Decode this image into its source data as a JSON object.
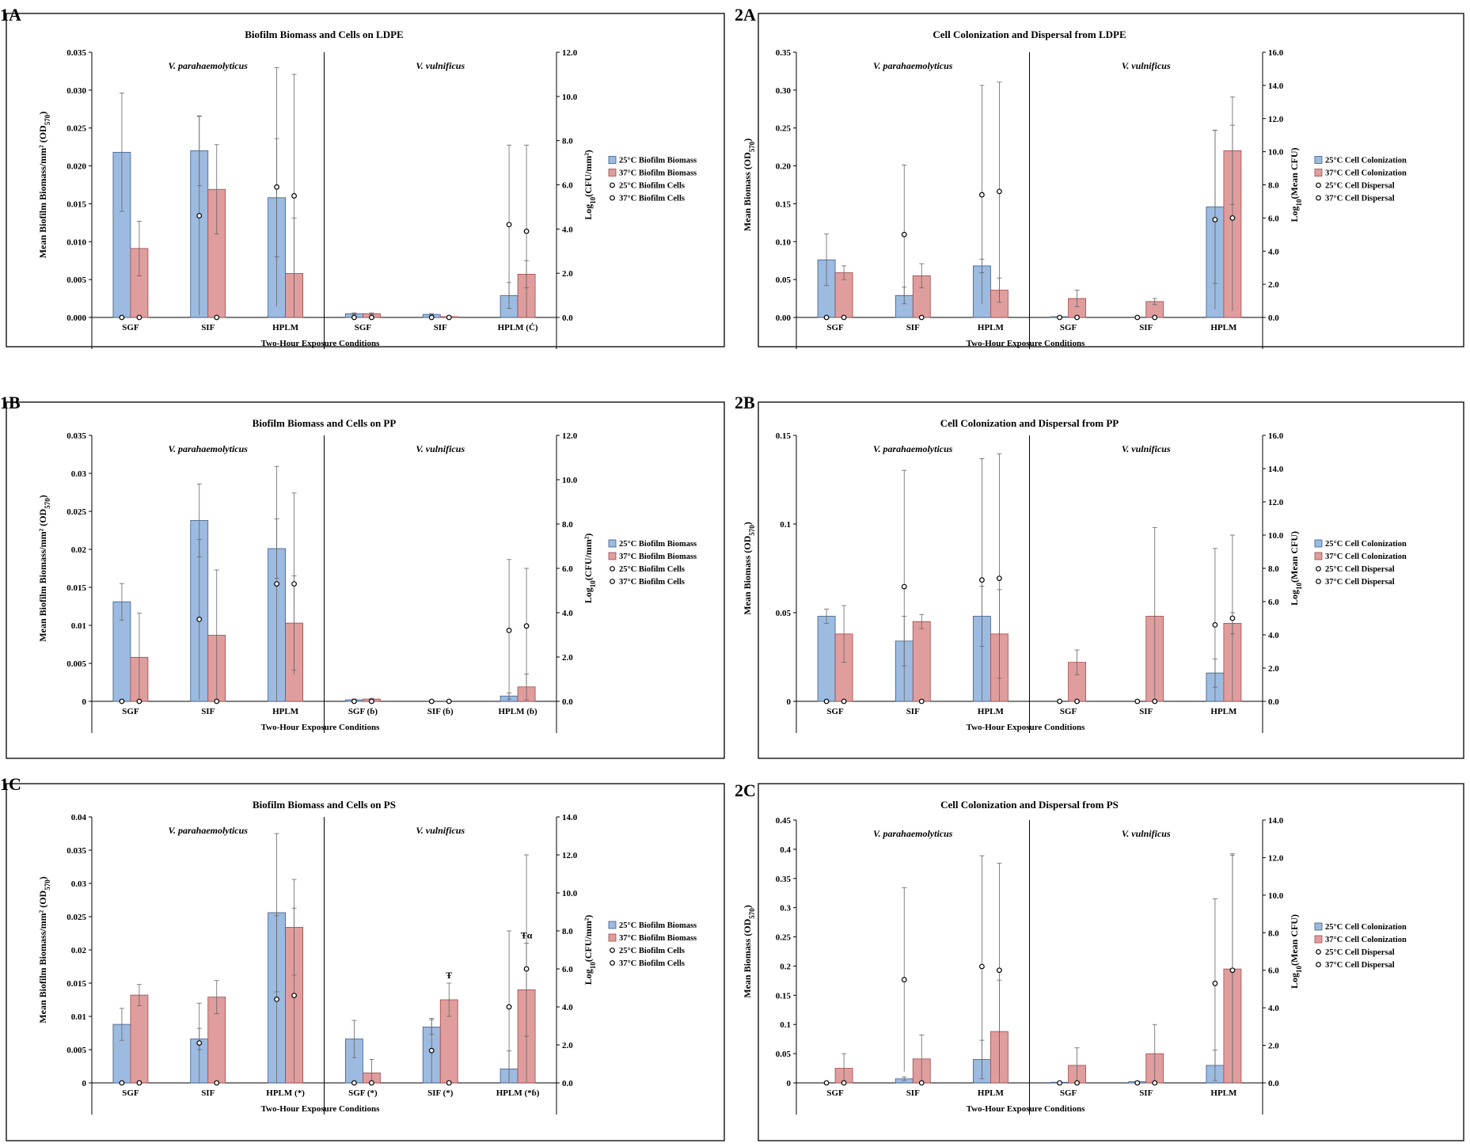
{
  "figure": {
    "legend_colors": {
      "biomass_25": "#9dbbe0",
      "biomass_37": "#e09d9d",
      "cells_25_fill": "#ffffff",
      "cells_37_fill": "#ffffff"
    }
  },
  "chart_data": [
    {
      "panel_label": "1A",
      "type": "bar",
      "title": "Biofilm Biomass and Cells on LDPE",
      "xlabel": "Two-Hour Exposure Conditions",
      "ylabel": "Mean Biofilm Biomass/mm² (OD570)",
      "y2label": "Log10(CFU/mm²)",
      "ylim": [
        0,
        0.035
      ],
      "yticks": [
        "0.000",
        "0.005",
        "0.010",
        "0.015",
        "0.020",
        "0.025",
        "0.030",
        "0.035"
      ],
      "y2lim": [
        0,
        12
      ],
      "y2ticks": [
        "0.0",
        "2.0",
        "4.0",
        "6.0",
        "8.0",
        "10.0",
        "12.0"
      ],
      "group_labels": [
        "V. parahaemolyticus",
        "V. vulnificus"
      ],
      "categories": [
        "SGF",
        "SIF",
        "HPLM",
        "SGF",
        "SIF",
        "HPLM (Ċ)"
      ],
      "legend": [
        "25°C Biofilm Biomass",
        "37°C Biofilm Biomass",
        "25°C Biofilm Cells",
        "37°C Biofilm Cells"
      ],
      "bars_25": [
        0.0218,
        0.022,
        0.0158,
        0.0005,
        0.0004,
        0.0029
      ],
      "bars_25_err": [
        0.0078,
        0.0046,
        0.0078,
        0.0001,
        0.0001,
        0.0017
      ],
      "bars_37": [
        0.0091,
        0.0169,
        0.0058,
        0.0005,
        0.0001,
        0.0057
      ],
      "bars_37_err": [
        0.0036,
        0.0059,
        0.0073,
        0.0001,
        0.0001,
        0.0018
      ],
      "cells_25": [
        0,
        4.6,
        5.9,
        0,
        0,
        4.2
      ],
      "cells_25_err": [
        0,
        4.5,
        5.4,
        0,
        0,
        3.6
      ],
      "cells_37": [
        0,
        0,
        5.5,
        0,
        0,
        3.9
      ],
      "cells_37_err": [
        0,
        0,
        5.5,
        0,
        0,
        3.9
      ],
      "annotations": []
    },
    {
      "panel_label": "2A",
      "type": "bar",
      "title": "Cell Colonization and Dispersal from LDPE",
      "xlabel": "Two-Hour Exposure Conditions",
      "ylabel": "Mean Biomass (OD570)",
      "y2label": "Log10(Mean CFU)",
      "ylim": [
        0,
        0.35
      ],
      "yticks": [
        "0.00",
        "0.05",
        "0.10",
        "0.15",
        "0.20",
        "0.25",
        "0.30",
        "0.35"
      ],
      "y2lim": [
        0,
        16
      ],
      "y2ticks": [
        "0.0",
        "2.0",
        "4.0",
        "6.0",
        "8.0",
        "10.0",
        "12.0",
        "14.0",
        "16.0"
      ],
      "group_labels": [
        "V. parahaemolyticus",
        "V. vulnificus"
      ],
      "categories": [
        "SGF",
        "SIF",
        "HPLM",
        "SGF",
        "SIF",
        "HPLM"
      ],
      "legend": [
        "25°C Cell Colonization",
        "37°C Cell Colonization",
        "25°C Cell Dispersal",
        "37°C Cell Dispersal"
      ],
      "bars_25": [
        0.076,
        0.029,
        0.068,
        0.001,
        0.0,
        0.146
      ],
      "bars_25_err": [
        0.034,
        0.011,
        0.009,
        0.0005,
        0.0,
        0.101
      ],
      "bars_37": [
        0.059,
        0.055,
        0.036,
        0.025,
        0.021,
        0.22
      ],
      "bars_37_err": [
        0.009,
        0.016,
        0.016,
        0.011,
        0.004,
        0.071
      ],
      "cells_25": [
        0,
        5.0,
        7.4,
        0,
        0,
        5.9
      ],
      "cells_25_err": [
        0,
        4.2,
        6.6,
        0,
        0,
        5.4
      ],
      "cells_37": [
        0,
        0,
        7.6,
        0,
        0,
        6.0
      ],
      "cells_37_err": [
        0,
        0,
        6.6,
        0,
        0,
        5.6
      ],
      "annotations": []
    },
    {
      "panel_label": "1B",
      "type": "bar",
      "title": "Biofilm Biomass and Cells on PP",
      "xlabel": "Two-Hour Exposure Conditions",
      "ylabel": "Mean Biofilm Biomass/mm² (OD570)",
      "y2label": "Log10(CFU/mm²)",
      "ylim": [
        0,
        0.035
      ],
      "yticks": [
        "0",
        "0.005",
        "0.01",
        "0.015",
        "0.02",
        "0.025",
        "0.03",
        "0.035"
      ],
      "y2lim": [
        0,
        12
      ],
      "y2ticks": [
        "0.0",
        "2.0",
        "4.0",
        "6.0",
        "8.0",
        "10.0",
        "12.0"
      ],
      "group_labels": [
        "V. parahaemolyticus",
        "V. vulnificus"
      ],
      "categories": [
        "SGF",
        "SIF",
        "HPLM",
        "SGF (ɓ)",
        "SIF (ɓ)",
        "HPLM (ɓ)"
      ],
      "legend": [
        "25°C Biofilm Biomass",
        "37°C Biofilm Biomass",
        "25°C Biofilm Cells",
        "37°C Biofilm Cells"
      ],
      "bars_25": [
        0.0131,
        0.0238,
        0.0201,
        0.0002,
        0.0,
        0.0007
      ],
      "bars_25_err": [
        0.0024,
        0.0048,
        0.0039,
        0.0001,
        0.0,
        0.0004
      ],
      "bars_37": [
        0.0058,
        0.0087,
        0.0103,
        0.0003,
        0.0,
        0.0019
      ],
      "bars_37_err": [
        0.0058,
        0.0086,
        0.0062,
        0.0001,
        0.0,
        0.0017
      ],
      "cells_25": [
        0,
        3.7,
        5.3,
        0,
        0,
        3.2
      ],
      "cells_25_err": [
        0,
        3.6,
        5.3,
        0,
        0,
        3.2
      ],
      "cells_37": [
        0,
        0,
        5.3,
        0,
        0,
        3.4
      ],
      "cells_37_err": [
        0,
        0,
        4.1,
        0,
        0,
        2.6
      ],
      "annotations": []
    },
    {
      "panel_label": "2B",
      "type": "bar",
      "title": "Cell Colonization and Dispersal from PP",
      "xlabel": "Two-Hour Exposure Conditions",
      "ylabel": "Mean Biomass (OD570)",
      "y2label": "Log10(Mean CFU)",
      "ylim": [
        0,
        0.15
      ],
      "yticks": [
        "0",
        "0.05",
        "0.1",
        "0.15"
      ],
      "y2lim": [
        0,
        16
      ],
      "y2ticks": [
        "0.0",
        "2.0",
        "4.0",
        "6.0",
        "8.0",
        "10.0",
        "12.0",
        "14.0",
        "16.0"
      ],
      "group_labels": [
        "V. parahaemolyticus",
        "V. vulnificus"
      ],
      "categories": [
        "SGF",
        "SIF",
        "HPLM",
        "SGF",
        "SIF",
        "HPLM"
      ],
      "legend": [
        "25°C Cell Colonization",
        "37°C Cell Colonization",
        "25°C Cell Dispersal",
        "37°C Cell Dispersal"
      ],
      "bars_25": [
        0.048,
        0.034,
        0.048,
        0.0,
        0.0,
        0.016
      ],
      "bars_25_err": [
        0.004,
        0.014,
        0.017,
        0.0,
        0.0,
        0.008
      ],
      "bars_37": [
        0.038,
        0.045,
        0.038,
        0.022,
        0.048,
        0.044
      ],
      "bars_37_err": [
        0.016,
        0.004,
        0.025,
        0.007,
        0.05,
        0.006
      ],
      "cells_25": [
        0,
        6.9,
        7.3,
        0,
        0,
        4.6
      ],
      "cells_25_err": [
        0,
        7.0,
        7.3,
        0,
        0,
        4.6
      ],
      "cells_37": [
        0,
        0,
        7.4,
        0,
        0,
        5.0
      ],
      "cells_37_err": [
        0,
        0,
        7.5,
        0,
        0,
        5.0
      ],
      "annotations": []
    },
    {
      "panel_label": "1C",
      "type": "bar",
      "title": "Biofilm Biomass and Cells on PS",
      "xlabel": "Two-Hour Exposure Conditions",
      "ylabel": "Mean Biofilm Biomass/mm² (OD570)",
      "y2label": "Log10(CFU/mm²)",
      "ylim": [
        0,
        0.04
      ],
      "yticks": [
        "0",
        "0.005",
        "0.01",
        "0.015",
        "0.02",
        "0.025",
        "0.03",
        "0.035",
        "0.04"
      ],
      "y2lim": [
        0,
        14
      ],
      "y2ticks": [
        "0.0",
        "2.0",
        "4.0",
        "6.0",
        "8.0",
        "10.0",
        "12.0",
        "14.0"
      ],
      "group_labels": [
        "V. parahaemolyticus",
        "V. vulnificus"
      ],
      "categories": [
        "SGF",
        "SIF",
        "HPLM (*)",
        "SGF (*)",
        "SIF (*)",
        "HPLM (*ɓ)"
      ],
      "legend": [
        "25°C Biofilm Biomass",
        "37°C Biofilm Biomass",
        "25°C Biofilm Cells",
        "37°C Biofilm Cells"
      ],
      "bars_25": [
        0.0088,
        0.0066,
        0.0256,
        0.0066,
        0.0084,
        0.0021
      ],
      "bars_25_err": [
        0.0024,
        0.0016,
        0.0119,
        0.0028,
        0.0011,
        0.0027
      ],
      "bars_37": [
        0.0132,
        0.0129,
        0.0234,
        0.0015,
        0.0125,
        0.014
      ],
      "bars_37_err": [
        0.0016,
        0.0025,
        0.0072,
        0.002,
        0.0025,
        0.007
      ],
      "cells_25": [
        0,
        2.1,
        4.4,
        0,
        1.7,
        4.0
      ],
      "cells_25_err": [
        0,
        2.1,
        4.4,
        0,
        1.7,
        4.0
      ],
      "cells_37": [
        0,
        0,
        4.6,
        0,
        0,
        6.0
      ],
      "cells_37_err": [
        0,
        0,
        4.6,
        0,
        0,
        6.0
      ],
      "annotations": [
        {
          "category_index": 4,
          "text": "Ŧ"
        },
        {
          "category_index": 5,
          "text": "Ŧα"
        }
      ]
    },
    {
      "panel_label": "2C",
      "type": "bar",
      "title": "Cell Colonization and Dispersal from PS",
      "xlabel": "Two-Hour Exposure Conditions",
      "ylabel": "Mean Biomass (OD570)",
      "y2label": "Log10(Mean CFU)",
      "ylim": [
        0,
        0.45
      ],
      "yticks": [
        "0",
        "0.05",
        "0.1",
        "0.15",
        "0.2",
        "0.25",
        "0.3",
        "0.35",
        "0.4",
        "0.45"
      ],
      "y2lim": [
        0,
        14
      ],
      "y2ticks": [
        "0.0",
        "2.0",
        "4.0",
        "6.0",
        "8.0",
        "10.0",
        "12.0",
        "14.0"
      ],
      "group_labels": [
        "V. parahaemolyticus",
        "V. vulnificus"
      ],
      "categories": [
        "SGF",
        "SIF",
        "HPLM",
        "SGF",
        "SIF",
        "HPLM"
      ],
      "legend": [
        "25°C Cell Colonization",
        "37°C Cell Colonization",
        "25°C Cell Dispersal",
        "37°C Cell Dispersal"
      ],
      "bars_25": [
        0.0,
        0.007,
        0.04,
        0.001,
        0.002,
        0.03
      ],
      "bars_25_err": [
        0.0,
        0.003,
        0.033,
        0.001,
        0.001,
        0.026
      ],
      "bars_37": [
        0.025,
        0.041,
        0.088,
        0.03,
        0.05,
        0.195
      ],
      "bars_37_err": [
        0.025,
        0.041,
        0.088,
        0.03,
        0.05,
        0.195
      ],
      "cells_25": [
        0,
        5.5,
        6.2,
        0,
        0,
        5.3
      ],
      "cells_25_err": [
        0,
        4.9,
        5.9,
        0,
        0,
        4.5
      ],
      "cells_37": [
        0,
        0,
        6.0,
        0,
        0,
        6.0
      ],
      "cells_37_err": [
        0,
        0,
        5.7,
        0,
        0,
        6.2
      ],
      "annotations": []
    }
  ]
}
